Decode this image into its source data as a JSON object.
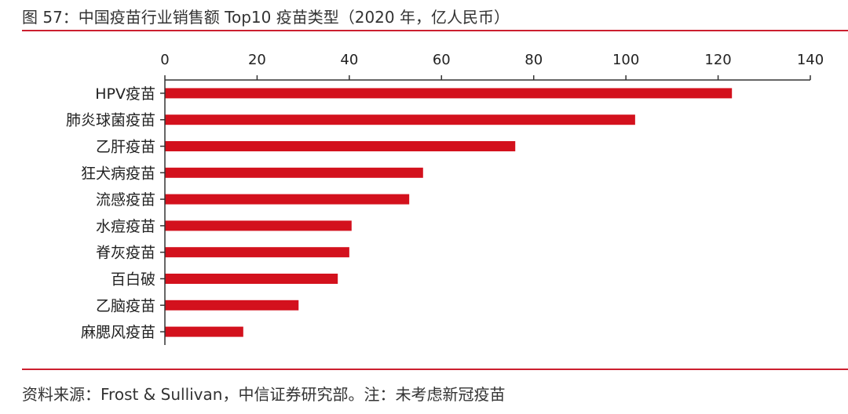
{
  "figure_title": "图 57：中国疫苗行业销售额 Top10 疫苗类型（2020 年，亿人民币）",
  "source_note": "资料来源：Frost & Sullivan，中信证券研究部。注：未考虑新冠疫苗",
  "colors": {
    "bar": "#d3111d",
    "accent_rule": "#cc1f2f",
    "axis": "#333333"
  },
  "chart_data": {
    "type": "bar",
    "orientation": "horizontal",
    "title": "",
    "xlabel": "",
    "ylabel": "",
    "xlim": [
      0,
      140
    ],
    "x_ticks": [
      0,
      20,
      40,
      60,
      80,
      100,
      120,
      140
    ],
    "x_axis_position": "top",
    "grid": false,
    "legend": "none",
    "categories": [
      "HPV疫苗",
      "肺炎球菌疫苗",
      "乙肝疫苗",
      "狂犬病疫苗",
      "流感疫苗",
      "水痘疫苗",
      "脊灰疫苗",
      "百白破",
      "乙脑疫苗",
      "麻腮风疫苗"
    ],
    "values": [
      123,
      102,
      76,
      56,
      53,
      40.5,
      40,
      37.5,
      29,
      17
    ]
  }
}
